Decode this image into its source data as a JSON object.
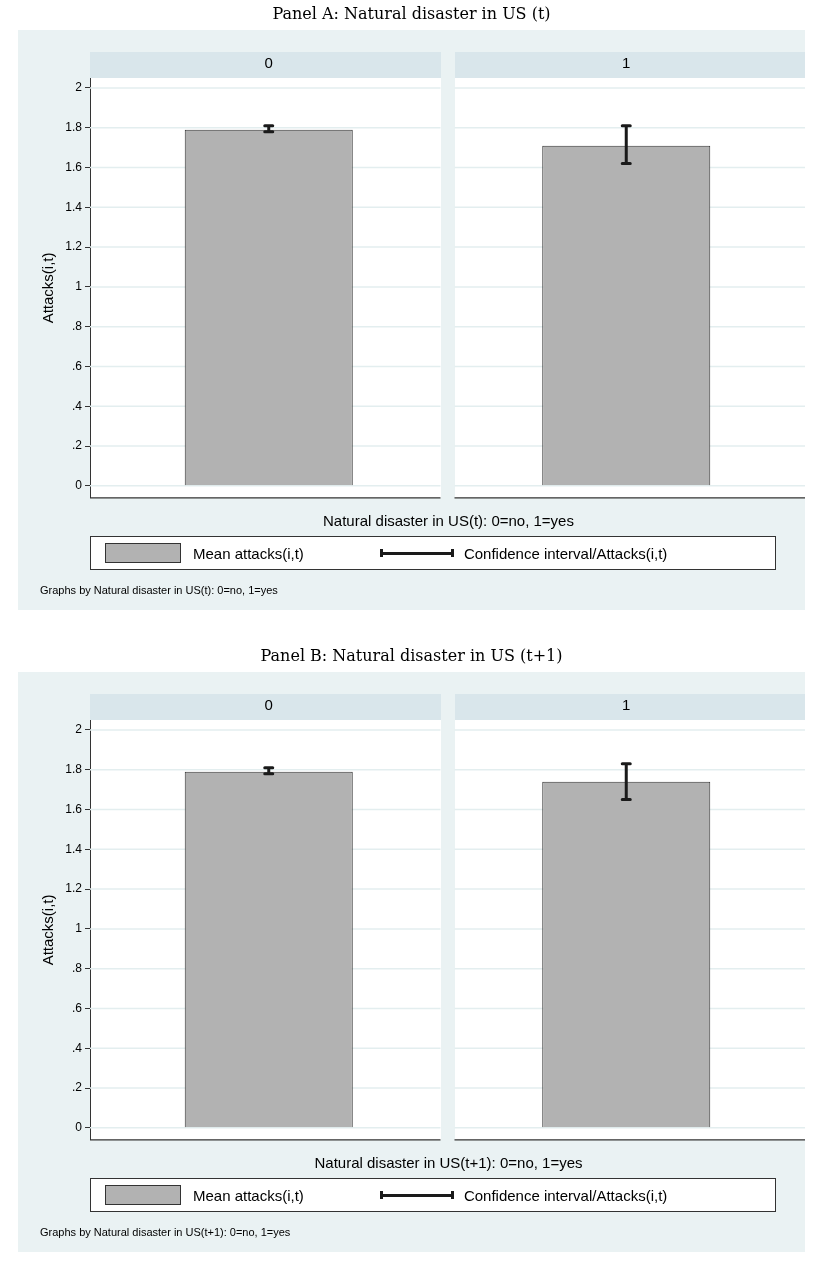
{
  "chart_data": [
    {
      "type": "bar",
      "title": "Panel A: Natural disaster in US (t)",
      "categories": [
        "0",
        "1"
      ],
      "series": [
        {
          "name": "Mean attacks(i,t)",
          "color": "#b2b2b2",
          "values": [
            1.79,
            1.71
          ],
          "errors": [
            [
              1.78,
              1.81
            ],
            [
              1.62,
              1.81
            ]
          ]
        }
      ],
      "ylabel": "Attacks(i,t)",
      "xlabel": "Natural disaster in US(t): 0=no, 1=yes",
      "legend": "bottom",
      "annotations": [
        "Confidence interval/Attacks(i,t)",
        "Graphs by Natural disaster in US(t): 0=no, 1=yes"
      ],
      "ylim": [
        -0.06,
        2.05
      ],
      "yticks": [
        0,
        {
          "value": 0.2,
          "label": ".2"
        },
        {
          "value": 0.4,
          "label": ".4"
        },
        {
          "value": 0.6,
          "label": ".6"
        },
        {
          "value": 0.8,
          "label": ".8"
        },
        1,
        1.2,
        1.4,
        1.6,
        1.8,
        2
      ],
      "grid": "y"
    },
    {
      "type": "bar",
      "title": "Panel B: Natural disaster in US (t+1)",
      "categories": [
        "0",
        "1"
      ],
      "series": [
        {
          "name": "Mean attacks(i,t)",
          "color": "#b2b2b2",
          "values": [
            1.79,
            1.74
          ],
          "errors": [
            [
              1.78,
              1.81
            ],
            [
              1.65,
              1.83
            ]
          ]
        }
      ],
      "ylabel": "Attacks(i,t)",
      "xlabel": "Natural disaster in US(t+1): 0=no, 1=yes",
      "legend": "bottom",
      "annotations": [
        "Confidence interval/Attacks(i,t)",
        "Graphs by Natural disaster in US(t+1): 0=no, 1=yes"
      ],
      "ylim": [
        -0.06,
        2.05
      ],
      "yticks": [
        0,
        {
          "value": 0.2,
          "label": ".2"
        },
        {
          "value": 0.4,
          "label": ".4"
        },
        {
          "value": 0.6,
          "label": ".6"
        },
        {
          "value": 0.8,
          "label": ".8"
        },
        1,
        1.2,
        1.4,
        1.6,
        1.8,
        2
      ],
      "grid": "y"
    }
  ]
}
